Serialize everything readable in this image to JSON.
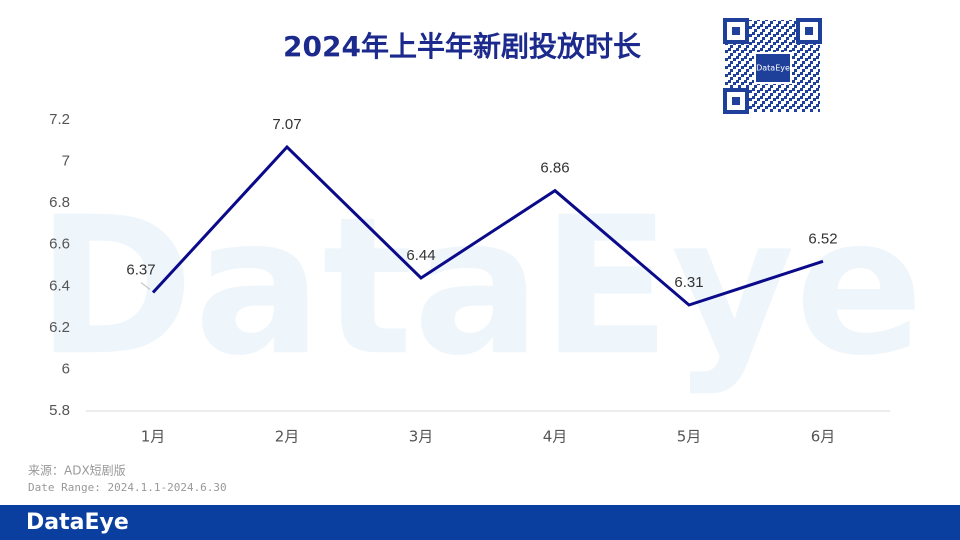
{
  "chart_data": {
    "type": "line",
    "title": "2024年上半年新剧投放时长",
    "categories": [
      "1月",
      "2月",
      "3月",
      "4月",
      "5月",
      "6月"
    ],
    "values": [
      6.37,
      7.07,
      6.44,
      6.86,
      6.31,
      6.52
    ],
    "color": "#0a0a8a",
    "ylim": [
      5.8,
      7.2
    ],
    "yticks": [
      5.8,
      6,
      6.2,
      6.4,
      6.6,
      6.8,
      7,
      7.2
    ],
    "source": "来源：ADX短剧版",
    "date_range": "Date Range: 2024.1.1-2024.6.30",
    "watermark": "DataEye",
    "qr_label": "DataEye",
    "brand": "DataEye"
  }
}
